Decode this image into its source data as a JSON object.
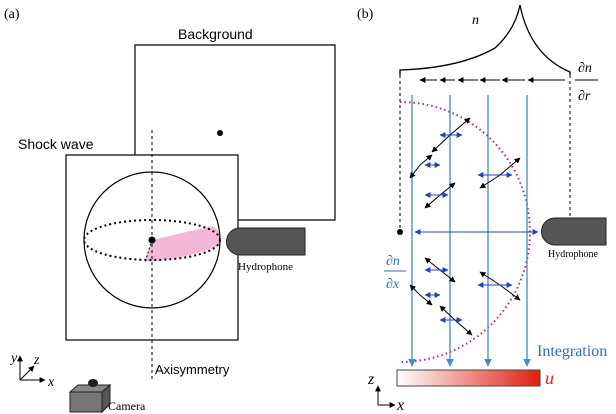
{
  "panel_a": {
    "label": "(a)",
    "background": "Background",
    "shock_wave": "Shock wave",
    "hydrophone": "Hydrophone",
    "axis_label": "Axisymmetry",
    "camera": "Camera",
    "axes": {
      "y": "y",
      "z": "z",
      "x": "x"
    }
  },
  "panel_b": {
    "label": "(b)",
    "density": "n",
    "radial_gradient": {
      "numerator": "∂n",
      "denominator": "∂r"
    },
    "x_gradient": {
      "numerator": "∂n",
      "denominator": "∂x"
    },
    "hydrophone": "Hydrophone",
    "integration": "Integration",
    "result": "u",
    "axes": {
      "z": "z",
      "x": "x"
    }
  }
}
